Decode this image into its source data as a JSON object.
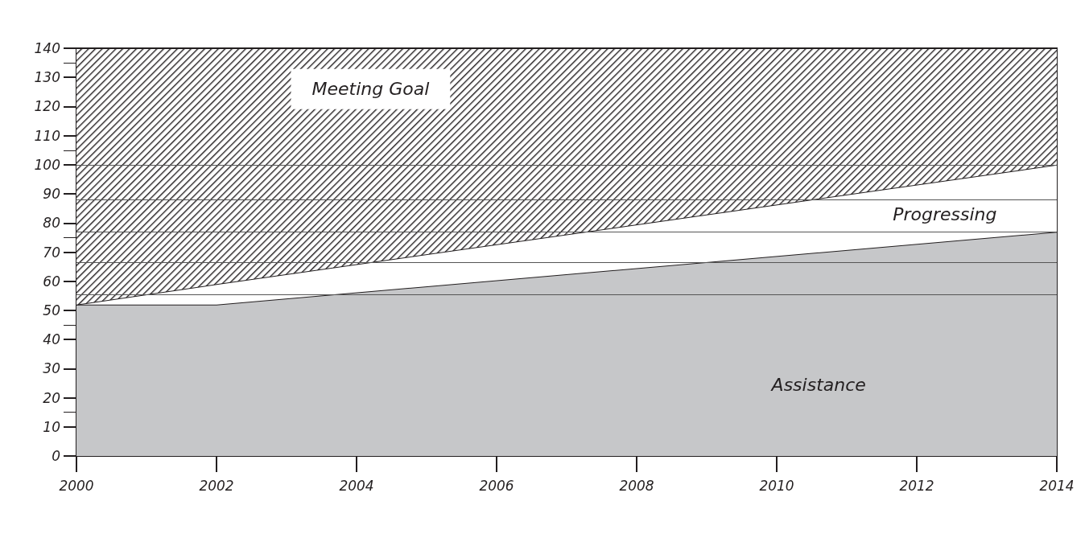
{
  "chart_data": {
    "type": "area",
    "stacked": true,
    "x": [
      2000,
      2002,
      2014
    ],
    "series": [
      {
        "name": "Assistance",
        "color": "#c6c7c9",
        "values": [
          52,
          52,
          77
        ]
      },
      {
        "name": "Progressing",
        "color": "#ffffff",
        "values": [
          0,
          7,
          23
        ]
      },
      {
        "name": "Meeting Goal",
        "color": "#231f20",
        "values": [
          88,
          81,
          40
        ]
      }
    ],
    "xlim": [
      2000,
      2014
    ],
    "xticks": [
      2000,
      2002,
      2004,
      2006,
      2008,
      2010,
      2012,
      2014
    ],
    "ylim": [
      0,
      140
    ],
    "yticks": [
      0,
      10,
      20,
      30,
      40,
      50,
      60,
      70,
      80,
      90,
      100,
      110,
      120,
      130,
      140
    ],
    "ref_lines": [
      {
        "axis": "y",
        "value": 55.5,
        "color": "#555555"
      },
      {
        "axis": "y",
        "value": 66.5,
        "color": "#555555"
      },
      {
        "axis": "y",
        "value": 77,
        "color": "#555555"
      },
      {
        "axis": "y",
        "value": 88,
        "color": "#555555"
      },
      {
        "axis": "y",
        "value": 100,
        "color": "#555555"
      }
    ],
    "grid": false,
    "legend": false,
    "line_style": "solid"
  }
}
